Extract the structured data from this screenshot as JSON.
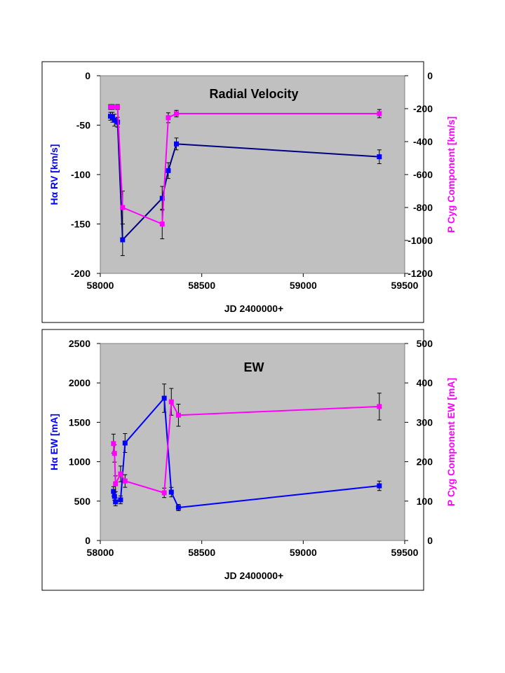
{
  "chart_data": [
    {
      "type": "line",
      "title": "Radial Velocity",
      "xlabel": "JD 2400000+",
      "ylabel": "Hα RV [km/s]",
      "y2label": "P Cyg Component [km/s]",
      "xlim": [
        58000,
        59500
      ],
      "ylim": [
        -200,
        0
      ],
      "y2lim": [
        -1200,
        0
      ],
      "xticks": [
        "58000",
        "58500",
        "59000",
        "59500"
      ],
      "xtickvals": [
        58000,
        58500,
        59000,
        59500
      ],
      "yticks": [
        "-200",
        "-150",
        "-100",
        "-50",
        "0"
      ],
      "ytickvals": [
        -200,
        -150,
        -100,
        -50,
        0
      ],
      "y2ticks": [
        "-1200",
        "-1000",
        "-800",
        "-600",
        "-400",
        "-200",
        "0"
      ],
      "y2tickvals": [
        -1200,
        -1000,
        -800,
        -600,
        -400,
        -200,
        0
      ],
      "series": [
        {
          "name": "Hα RV",
          "axis": "left",
          "color": "#0000ff",
          "line": "#000080",
          "x": [
            58050,
            58060,
            58070,
            58085,
            58110,
            58305,
            58335,
            58375,
            59375
          ],
          "y": [
            -41,
            -42,
            -45,
            -47,
            -166,
            -124,
            -96,
            -69,
            -82
          ],
          "err": [
            4,
            5,
            6,
            5,
            16,
            12,
            8,
            6,
            7
          ]
        },
        {
          "name": "P Cyg",
          "axis": "right",
          "color": "#ff00ff",
          "line": "#ff00ff",
          "x": [
            58050,
            58060,
            58085,
            58110,
            58305,
            58335,
            58375,
            59375
          ],
          "y": [
            -190,
            -190,
            -190,
            -800,
            -900,
            -255,
            -230,
            -230
          ],
          "err": [
            15,
            15,
            15,
            100,
            90,
            30,
            20,
            25
          ]
        }
      ]
    },
    {
      "type": "line",
      "title": "EW",
      "xlabel": "JD 2400000+",
      "ylabel": "Hα EW [mA]",
      "y2label": "P Cyg Component EW [mA]",
      "xlim": [
        58000,
        59500
      ],
      "ylim": [
        0,
        2500
      ],
      "y2lim": [
        0,
        500
      ],
      "xticks": [
        "58000",
        "58500",
        "59000",
        "59500"
      ],
      "xtickvals": [
        58000,
        58500,
        59000,
        59500
      ],
      "yticks": [
        "0",
        "500",
        "1000",
        "1500",
        "2000",
        "2500"
      ],
      "ytickvals": [
        0,
        500,
        1000,
        1500,
        2000,
        2500
      ],
      "y2ticks": [
        "0",
        "100",
        "200",
        "300",
        "400",
        "500"
      ],
      "y2tickvals": [
        0,
        100,
        200,
        300,
        400,
        500
      ],
      "series": [
        {
          "name": "Hα EW",
          "axis": "left",
          "color": "#0000ff",
          "line": "#0000ff",
          "x": [
            58065,
            58070,
            58075,
            58100,
            58122,
            58315,
            58350,
            58385,
            59375
          ],
          "y": [
            623,
            560,
            490,
            516,
            1237,
            1806,
            614,
            418,
            694
          ],
          "err": [
            60,
            50,
            50,
            50,
            120,
            180,
            60,
            40,
            60
          ]
        },
        {
          "name": "P Cyg EW",
          "axis": "right",
          "color": "#ff00ff",
          "line": "#ff00ff",
          "x": [
            58065,
            58070,
            58075,
            58100,
            58122,
            58315,
            58350,
            58385,
            59375
          ],
          "y": [
            246,
            221,
            144,
            169,
            151,
            121,
            352,
            318,
            340
          ],
          "err": [
            24,
            22,
            20,
            20,
            16,
            12,
            34,
            28,
            34
          ]
        }
      ]
    }
  ]
}
